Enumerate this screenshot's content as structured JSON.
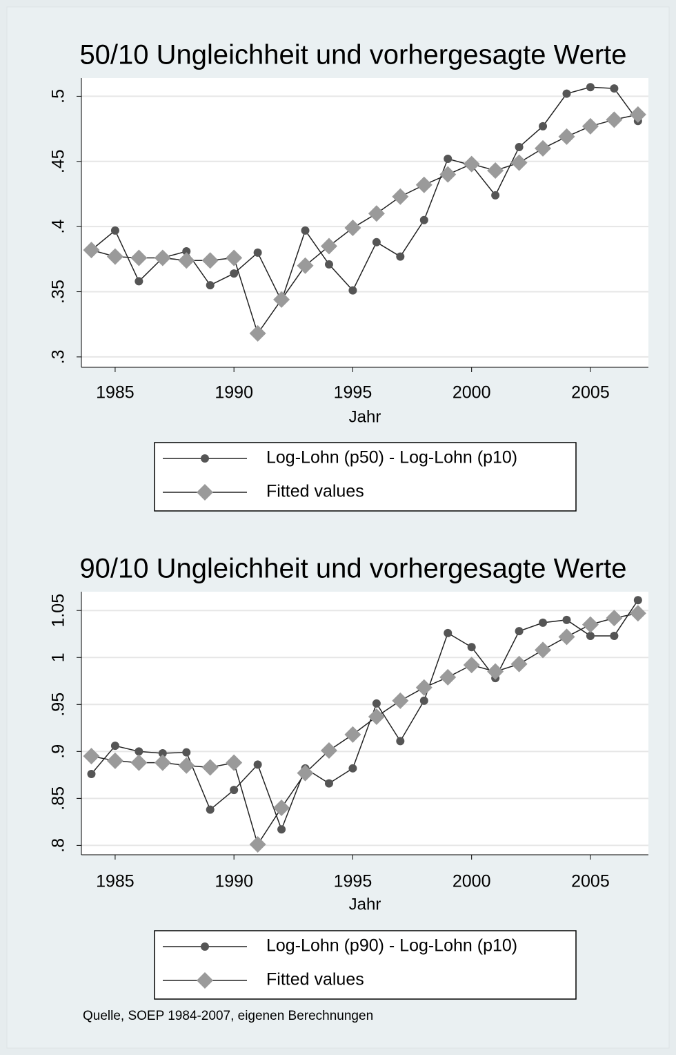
{
  "chart_data": [
    {
      "type": "line",
      "title": "50/10 Ungleichheit und vorhergesagte Werte",
      "x_label": "Jahr",
      "x": [
        1984,
        1985,
        1986,
        1987,
        1988,
        1989,
        1990,
        1991,
        1992,
        1993,
        1994,
        1995,
        1996,
        1997,
        1998,
        1999,
        2000,
        2001,
        2002,
        2003,
        2004,
        2005,
        2006,
        2007
      ],
      "series": [
        {
          "name": "Log-Lohn (p50) - Log-Lohn (p10)",
          "color": "#555555",
          "marker": "circle",
          "values": [
            0.382,
            0.397,
            0.358,
            0.376,
            0.381,
            0.355,
            0.364,
            0.38,
            0.343,
            0.397,
            0.371,
            0.351,
            0.388,
            0.377,
            0.405,
            0.452,
            0.447,
            0.424,
            0.461,
            0.477,
            0.502,
            0.507,
            0.506,
            0.481
          ]
        },
        {
          "name": "Fitted values",
          "color": "#9a9a9a",
          "marker": "diamond",
          "values": [
            0.382,
            0.377,
            0.376,
            0.376,
            0.374,
            0.374,
            0.376,
            0.318,
            0.344,
            0.37,
            0.385,
            0.399,
            0.41,
            0.423,
            0.432,
            0.44,
            0.448,
            0.443,
            0.449,
            0.46,
            0.469,
            0.477,
            0.482,
            0.486
          ]
        }
      ],
      "xlim": [
        1983.58,
        2007.44
      ],
      "xticks": [
        1985,
        1990,
        1995,
        2000,
        2005
      ],
      "ylim": [
        0.292,
        0.514
      ],
      "yticks": [
        {
          "value": 0.3,
          "label": ".3"
        },
        {
          "value": 0.35,
          "label": ".35"
        },
        {
          "value": 0.4,
          "label": ".4"
        },
        {
          "value": 0.45,
          "label": ".45"
        },
        {
          "value": 0.5,
          "label": ".5"
        }
      ],
      "grid": true
    },
    {
      "type": "line",
      "title": "90/10 Ungleichheit und vorhergesagte Werte",
      "x_label": "Jahr",
      "x": [
        1984,
        1985,
        1986,
        1987,
        1988,
        1989,
        1990,
        1991,
        1992,
        1993,
        1994,
        1995,
        1996,
        1997,
        1998,
        1999,
        2000,
        2001,
        2002,
        2003,
        2004,
        2005,
        2006,
        2007
      ],
      "series": [
        {
          "name": "Log-Lohn (p90) - Log-Lohn (p10)",
          "color": "#555555",
          "marker": "circle",
          "values": [
            0.876,
            0.906,
            0.9,
            0.898,
            0.899,
            0.838,
            0.859,
            0.886,
            0.817,
            0.882,
            0.866,
            0.882,
            0.951,
            0.911,
            0.954,
            1.026,
            1.011,
            0.978,
            1.028,
            1.037,
            1.04,
            1.023,
            1.023,
            1.061
          ]
        },
        {
          "name": "Fitted values",
          "color": "#9a9a9a",
          "marker": "diamond",
          "values": [
            0.895,
            0.89,
            0.888,
            0.888,
            0.885,
            0.883,
            0.888,
            0.801,
            0.84,
            0.877,
            0.901,
            0.918,
            0.937,
            0.954,
            0.968,
            0.979,
            0.992,
            0.985,
            0.993,
            1.008,
            1.022,
            1.035,
            1.042,
            1.047
          ]
        }
      ],
      "xlim": [
        1983.58,
        2007.44
      ],
      "xticks": [
        1985,
        1990,
        1995,
        2000,
        2005
      ],
      "ylim": [
        0.79,
        1.07
      ],
      "yticks": [
        {
          "value": 0.8,
          "label": ".8"
        },
        {
          "value": 0.85,
          "label": ".85"
        },
        {
          "value": 0.9,
          "label": ".9"
        },
        {
          "value": 0.95,
          "label": ".95"
        },
        1,
        1.05
      ],
      "grid": true
    }
  ],
  "note": "Quelle, SOEP 1984-2007, eigenen Berechnungen"
}
